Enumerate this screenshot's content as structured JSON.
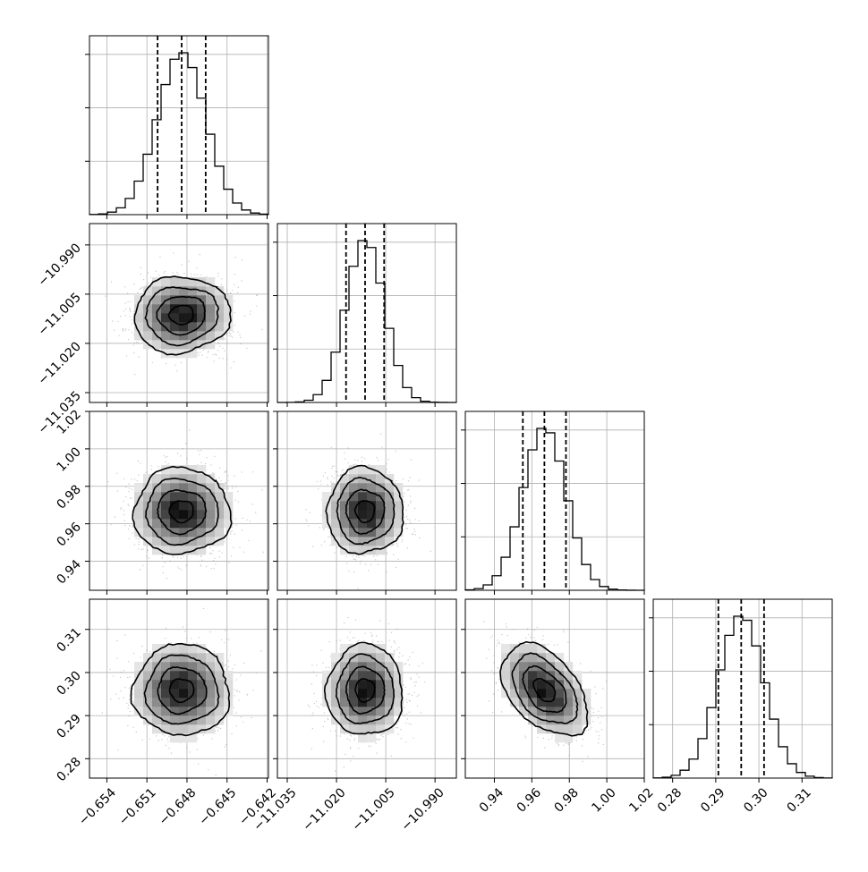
{
  "chart_data": {
    "type": "corner",
    "parameters": [
      {
        "name": "",
        "mean": -0.6484,
        "sigma": 0.0018,
        "range": [
          -0.6553,
          -0.6419
        ],
        "ticks": [
          -0.654,
          -0.651,
          -0.648,
          -0.645,
          -0.642
        ],
        "tick_labels": [
          "−0.654",
          "−0.651",
          "−0.648",
          "−0.645",
          "−0.642"
        ],
        "quantiles": [
          -0.6502,
          -0.6484,
          -0.6466
        ]
      },
      {
        "name": "",
        "mean": -11.0113,
        "sigma": 0.0058,
        "range": [
          -11.038,
          -10.9835
        ],
        "ticks": [
          -11.035,
          -11.02,
          -11.005,
          -10.99
        ],
        "tick_labels": [
          "−11.035",
          "−11.020",
          "−11.005",
          "−10.990"
        ],
        "quantiles": [
          -11.0171,
          -11.0113,
          -11.0055
        ]
      },
      {
        "name": "",
        "mean": 0.9667,
        "sigma": 0.0115,
        "range": [
          0.9245,
          1.02
        ],
        "ticks": [
          0.94,
          0.96,
          0.98,
          1.0,
          1.02
        ],
        "tick_labels": [
          "0.94",
          "0.96",
          "0.98",
          "1.00",
          "1.02"
        ],
        "quantiles": [
          0.9552,
          0.9667,
          0.9782
        ]
      },
      {
        "name": "",
        "mean": 0.2959,
        "sigma": 0.0053,
        "range": [
          0.2755,
          0.317
        ],
        "ticks": [
          0.28,
          0.29,
          0.3,
          0.31
        ],
        "tick_labels": [
          "0.28",
          "0.29",
          "0.30",
          "0.31"
        ],
        "quantiles": [
          0.2906,
          0.2959,
          0.3012
        ]
      }
    ],
    "correlations": [
      [
        1.0,
        0.05,
        0.0,
        0.0
      ],
      [
        0.05,
        1.0,
        0.0,
        0.0
      ],
      [
        0.0,
        0.0,
        1.0,
        -0.45
      ],
      [
        0.0,
        0.0,
        -0.45,
        1.0
      ]
    ],
    "histogram_bins": 20,
    "contour_levels_sigma": [
      0.5,
      1.0,
      1.5,
      2.0
    ],
    "grid": true,
    "colors": {
      "line": "#000000",
      "points": "#888888",
      "grid": "#b0b0b0",
      "frame": "#000000"
    }
  }
}
